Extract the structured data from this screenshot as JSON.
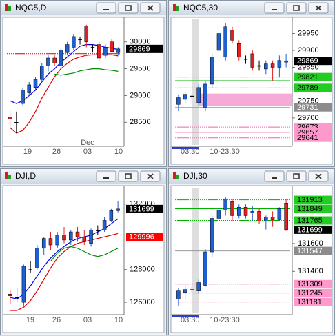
{
  "windows": [
    {
      "title": "NQC5,D",
      "chart": {
        "type": "daily",
        "ylim": [
          28080,
          30420
        ],
        "yticks": [
          28500,
          29000,
          29500,
          30000
        ],
        "x_labels": [
          "19",
          "26",
          "Dec",
          "03",
          "10"
        ],
        "up_color": "#1f5fd0",
        "down_color": "#e02020",
        "flat_color": "#000000",
        "candles": [
          [
            28600,
            28720,
            28400,
            28560
          ],
          [
            28500,
            28700,
            28300,
            28500
          ],
          [
            28850,
            29150,
            28820,
            29100
          ],
          [
            29050,
            29250,
            29000,
            29200
          ],
          [
            29150,
            29350,
            29100,
            29300
          ],
          [
            29300,
            29600,
            29250,
            29550
          ],
          [
            29550,
            29750,
            29450,
            29700
          ],
          [
            29700,
            29750,
            29550,
            29600
          ],
          [
            29550,
            29900,
            29500,
            29850
          ],
          [
            29800,
            30000,
            29750,
            29950
          ],
          [
            29900,
            30150,
            29850,
            30100
          ],
          [
            30050,
            30100,
            29950,
            30050
          ],
          [
            30300,
            30320,
            29900,
            30000
          ],
          [
            29900,
            29950,
            29800,
            29900
          ],
          [
            29950,
            30000,
            29650,
            29700
          ],
          [
            29750,
            29950,
            29700,
            29900
          ],
          [
            30000,
            30050,
            29800,
            29820
          ],
          [
            29800,
            29900,
            29750,
            29869
          ]
        ],
        "lines": [
          {
            "color": "#0000ee",
            "values": [
              28900,
              28850,
              28900,
              29000,
              29100,
              29250,
              29400,
              29500,
              29620,
              29720,
              29820,
              29920,
              29950,
              29950,
              29930,
              29900,
              29880,
              29860
            ]
          },
          {
            "color": "#dd0000",
            "values": [
              28400,
              28300,
              28350,
              28500,
              28700,
              28950,
              29150,
              29350,
              29500,
              29600,
              29680,
              29720,
              29750,
              29760,
              29760,
              29760,
              29760,
              29740
            ]
          },
          {
            "color": "#008800",
            "values": [
              null,
              null,
              null,
              null,
              null,
              null,
              null,
              29400,
              29380,
              29400,
              29420,
              29460,
              29480,
              29500,
              29500,
              29480,
              29470,
              29450
            ]
          }
        ],
        "levels": [
          {
            "value": 29780,
            "color": "#cc0000"
          }
        ],
        "tags": [
          {
            "value": 29869,
            "color": "#000000",
            "text_color": "#ffffff"
          }
        ]
      }
    },
    {
      "title": "NQC5,30",
      "chart": {
        "type": "intraday",
        "ylim": [
          29620,
          29992
        ],
        "yticks": [
          29700,
          29750,
          29850,
          29900,
          29950
        ],
        "x_labels": [
          "03:30",
          "10-23:30"
        ],
        "up_color": "#1f5fd0",
        "down_color": "#e02020",
        "flat_color": "#000000",
        "band": [
          29735,
          29772
        ],
        "band_color": "#f59bd0",
        "candles": [
          [
            29740,
            29770,
            29720,
            29760
          ],
          [
            29755,
            29775,
            29745,
            29770
          ],
          [
            29765,
            29770,
            29755,
            29765
          ],
          [
            29745,
            29800,
            29735,
            29790
          ],
          [
            29730,
            29810,
            29720,
            29800
          ],
          [
            29800,
            29890,
            29790,
            29880
          ],
          [
            29900,
            29975,
            29890,
            29950
          ],
          [
            29880,
            29980,
            29870,
            29970
          ],
          [
            29960,
            29970,
            29920,
            29930
          ],
          [
            29920,
            29930,
            29870,
            29880
          ],
          [
            29875,
            29885,
            29860,
            29875
          ],
          [
            29890,
            29900,
            29840,
            29850
          ],
          [
            29855,
            29870,
            29840,
            29855
          ],
          [
            29845,
            29870,
            29830,
            29860
          ],
          [
            29860,
            29870,
            29810,
            29850
          ],
          [
            29850,
            29885,
            29820,
            29870
          ],
          [
            29865,
            29890,
            29850,
            29869
          ]
        ],
        "lines": [],
        "levels": [
          {
            "value": 29821,
            "color": "#00b000"
          },
          {
            "value": 29810,
            "color": "#00b000"
          },
          {
            "value": 29789,
            "color": "#00b000"
          },
          {
            "value": 29731,
            "color": "#999999"
          },
          {
            "value": 29673,
            "color": "#ee66aa"
          },
          {
            "value": 29657,
            "color": "#ee66aa"
          },
          {
            "value": 29641,
            "color": "#ee66aa"
          }
        ],
        "tags": [
          {
            "value": 29869,
            "color": "#000000",
            "text_color": "#ffffff"
          },
          {
            "value": 29821,
            "color": "#22cc22",
            "text_color": "#000000"
          },
          {
            "value": 29789,
            "color": "#22cc22",
            "text_color": "#000000"
          },
          {
            "value": 29731,
            "color": "#8c8c8c",
            "text_color": "#ffffff"
          },
          {
            "value": 29673,
            "color": "#ff99cc",
            "text_color": "#000000"
          },
          {
            "value": 29657,
            "color": "#ff99cc",
            "text_color": "#000000"
          },
          {
            "value": 29641,
            "color": "#ff99cc",
            "text_color": "#000000"
          }
        ]
      }
    },
    {
      "title": "DJI,D",
      "chart": {
        "type": "daily",
        "ylim": [
          125330,
          133000
        ],
        "yticks": [
          126000,
          128000,
          132000
        ],
        "x_labels": [
          "19",
          "26",
          "03",
          "10"
        ],
        "up_color": "#1f5fd0",
        "down_color": "#e02020",
        "flat_color": "#000000",
        "candles": [
          [
            126500,
            126700,
            125900,
            126400
          ],
          [
            126300,
            126900,
            126000,
            126300
          ],
          [
            126000,
            128300,
            125800,
            128200
          ],
          [
            128000,
            128500,
            127800,
            128000
          ],
          [
            128100,
            129500,
            128000,
            129300
          ],
          [
            129300,
            130000,
            128900,
            129900
          ],
          [
            129900,
            130300,
            129200,
            129500
          ],
          [
            129500,
            130300,
            129300,
            130100
          ],
          [
            130100,
            130600,
            129600,
            129800
          ],
          [
            129800,
            130400,
            129500,
            130300
          ],
          [
            130300,
            130600,
            129700,
            130000
          ],
          [
            130000,
            130400,
            129500,
            129700
          ],
          [
            129600,
            130500,
            129400,
            130400
          ],
          [
            130400,
            130700,
            130100,
            130400
          ],
          [
            130400,
            131200,
            130300,
            131000
          ],
          [
            131000,
            131700,
            130900,
            131600
          ],
          [
            131600,
            132200,
            131500,
            131699
          ]
        ],
        "lines": [
          {
            "color": "#0000ee",
            "values": [
              126300,
              126200,
              126500,
              127000,
              127600,
              128200,
              128700,
              129100,
              129400,
              129700,
              129900,
              130000,
              130100,
              130300,
              130500,
              130800,
              131100
            ]
          },
          {
            "color": "#dd0000",
            "values": [
              125500,
              125500,
              125700,
              126100,
              126700,
              127400,
              128100,
              128700,
              129100,
              129400,
              129600,
              129700,
              129800,
              129900,
              130000,
              130100,
              130200
            ]
          },
          {
            "color": "#008800",
            "values": [
              null,
              null,
              null,
              null,
              null,
              null,
              128500,
              129000,
              129300,
              129400,
              129300,
              129100,
              128900,
              128800,
              128900,
              129100,
              129300
            ]
          }
        ],
        "levels": [],
        "tags": [
          {
            "value": 131699,
            "color": "#000000",
            "text_color": "#ffffff"
          },
          {
            "value": 129996,
            "color": "#ff0000",
            "text_color": "#ffffff"
          }
        ]
      }
    },
    {
      "title": "DJI,30",
      "chart": {
        "type": "intraday",
        "ylim": [
          131100,
          132000
        ],
        "yticks": [
          131400,
          131600
        ],
        "x_labels": [
          "03:30",
          "10-23:30"
        ],
        "up_color": "#1f5fd0",
        "down_color": "#e02020",
        "flat_color": "#000000",
        "candles": [
          [
            131200,
            131280,
            131150,
            131260
          ],
          [
            131250,
            131300,
            131200,
            131270
          ],
          [
            131270,
            131290,
            131250,
            131270
          ],
          [
            131260,
            131340,
            131240,
            131320
          ],
          [
            131300,
            131560,
            131290,
            131540
          ],
          [
            131540,
            131800,
            131500,
            131780
          ],
          [
            131780,
            131850,
            131700,
            131840
          ],
          [
            131840,
            131930,
            131800,
            131920
          ],
          [
            131900,
            131920,
            131760,
            131800
          ],
          [
            131800,
            131880,
            131780,
            131860
          ],
          [
            131860,
            131880,
            131780,
            131800
          ],
          [
            131820,
            131870,
            131760,
            131830
          ],
          [
            131830,
            131850,
            131740,
            131760
          ],
          [
            131760,
            131800,
            131700,
            131790
          ],
          [
            131790,
            131830,
            131720,
            131770
          ],
          [
            131770,
            131860,
            131760,
            131850
          ],
          [
            131890,
            131920,
            131690,
            131699
          ]
        ],
        "lines": [],
        "levels": [
          {
            "value": 131913,
            "color": "#00b000"
          },
          {
            "value": 131849,
            "color": "#00b000"
          },
          {
            "value": 131765,
            "color": "#00b000"
          },
          {
            "value": 131547,
            "color": "#999999"
          },
          {
            "value": 131309,
            "color": "#ee66aa"
          },
          {
            "value": 131245,
            "color": "#ee66aa"
          },
          {
            "value": 131181,
            "color": "#ee66aa"
          }
        ],
        "tags": [
          {
            "value": 131913,
            "color": "#22cc22",
            "text_color": "#000000"
          },
          {
            "value": 131849,
            "color": "#22cc22",
            "text_color": "#000000"
          },
          {
            "value": 131765,
            "color": "#22cc22",
            "text_color": "#000000"
          },
          {
            "value": 131699,
            "color": "#000000",
            "text_color": "#ffffff"
          },
          {
            "value": 131547,
            "color": "#8c8c8c",
            "text_color": "#ffffff"
          },
          {
            "value": 131309,
            "color": "#ff99cc",
            "text_color": "#000000"
          },
          {
            "value": 131245,
            "color": "#ff99cc",
            "text_color": "#000000"
          },
          {
            "value": 131181,
            "color": "#ff99cc",
            "text_color": "#000000"
          }
        ]
      }
    }
  ]
}
